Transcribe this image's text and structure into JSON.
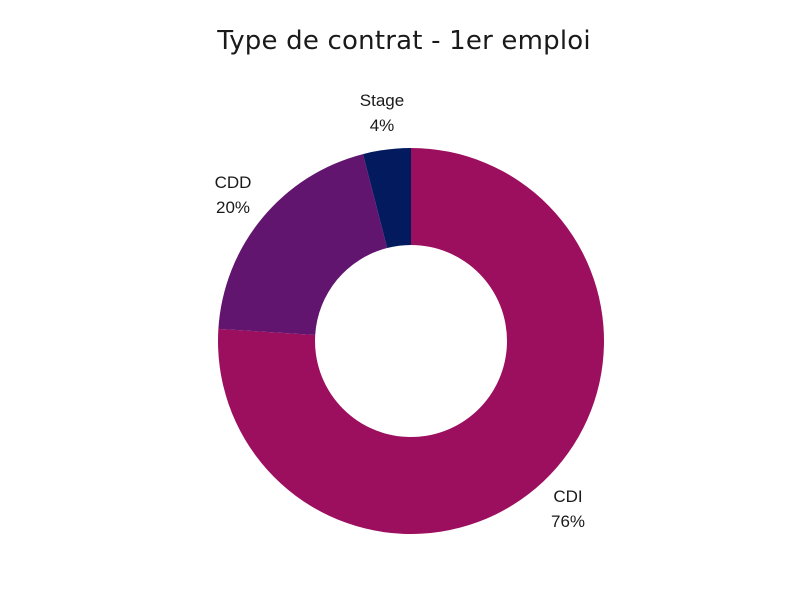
{
  "chart_data": {
    "type": "pie",
    "title": "Type de contrat - 1er emploi",
    "donut": true,
    "slices": [
      {
        "label": "CDI",
        "value": 76,
        "value_label": "76%",
        "color": "#9C0E5E"
      },
      {
        "label": "CDD",
        "value": 20,
        "value_label": "20%",
        "color": "#62156E"
      },
      {
        "label": "Stage",
        "value": 4,
        "value_label": "4%",
        "color": "#031A5E"
      }
    ]
  }
}
